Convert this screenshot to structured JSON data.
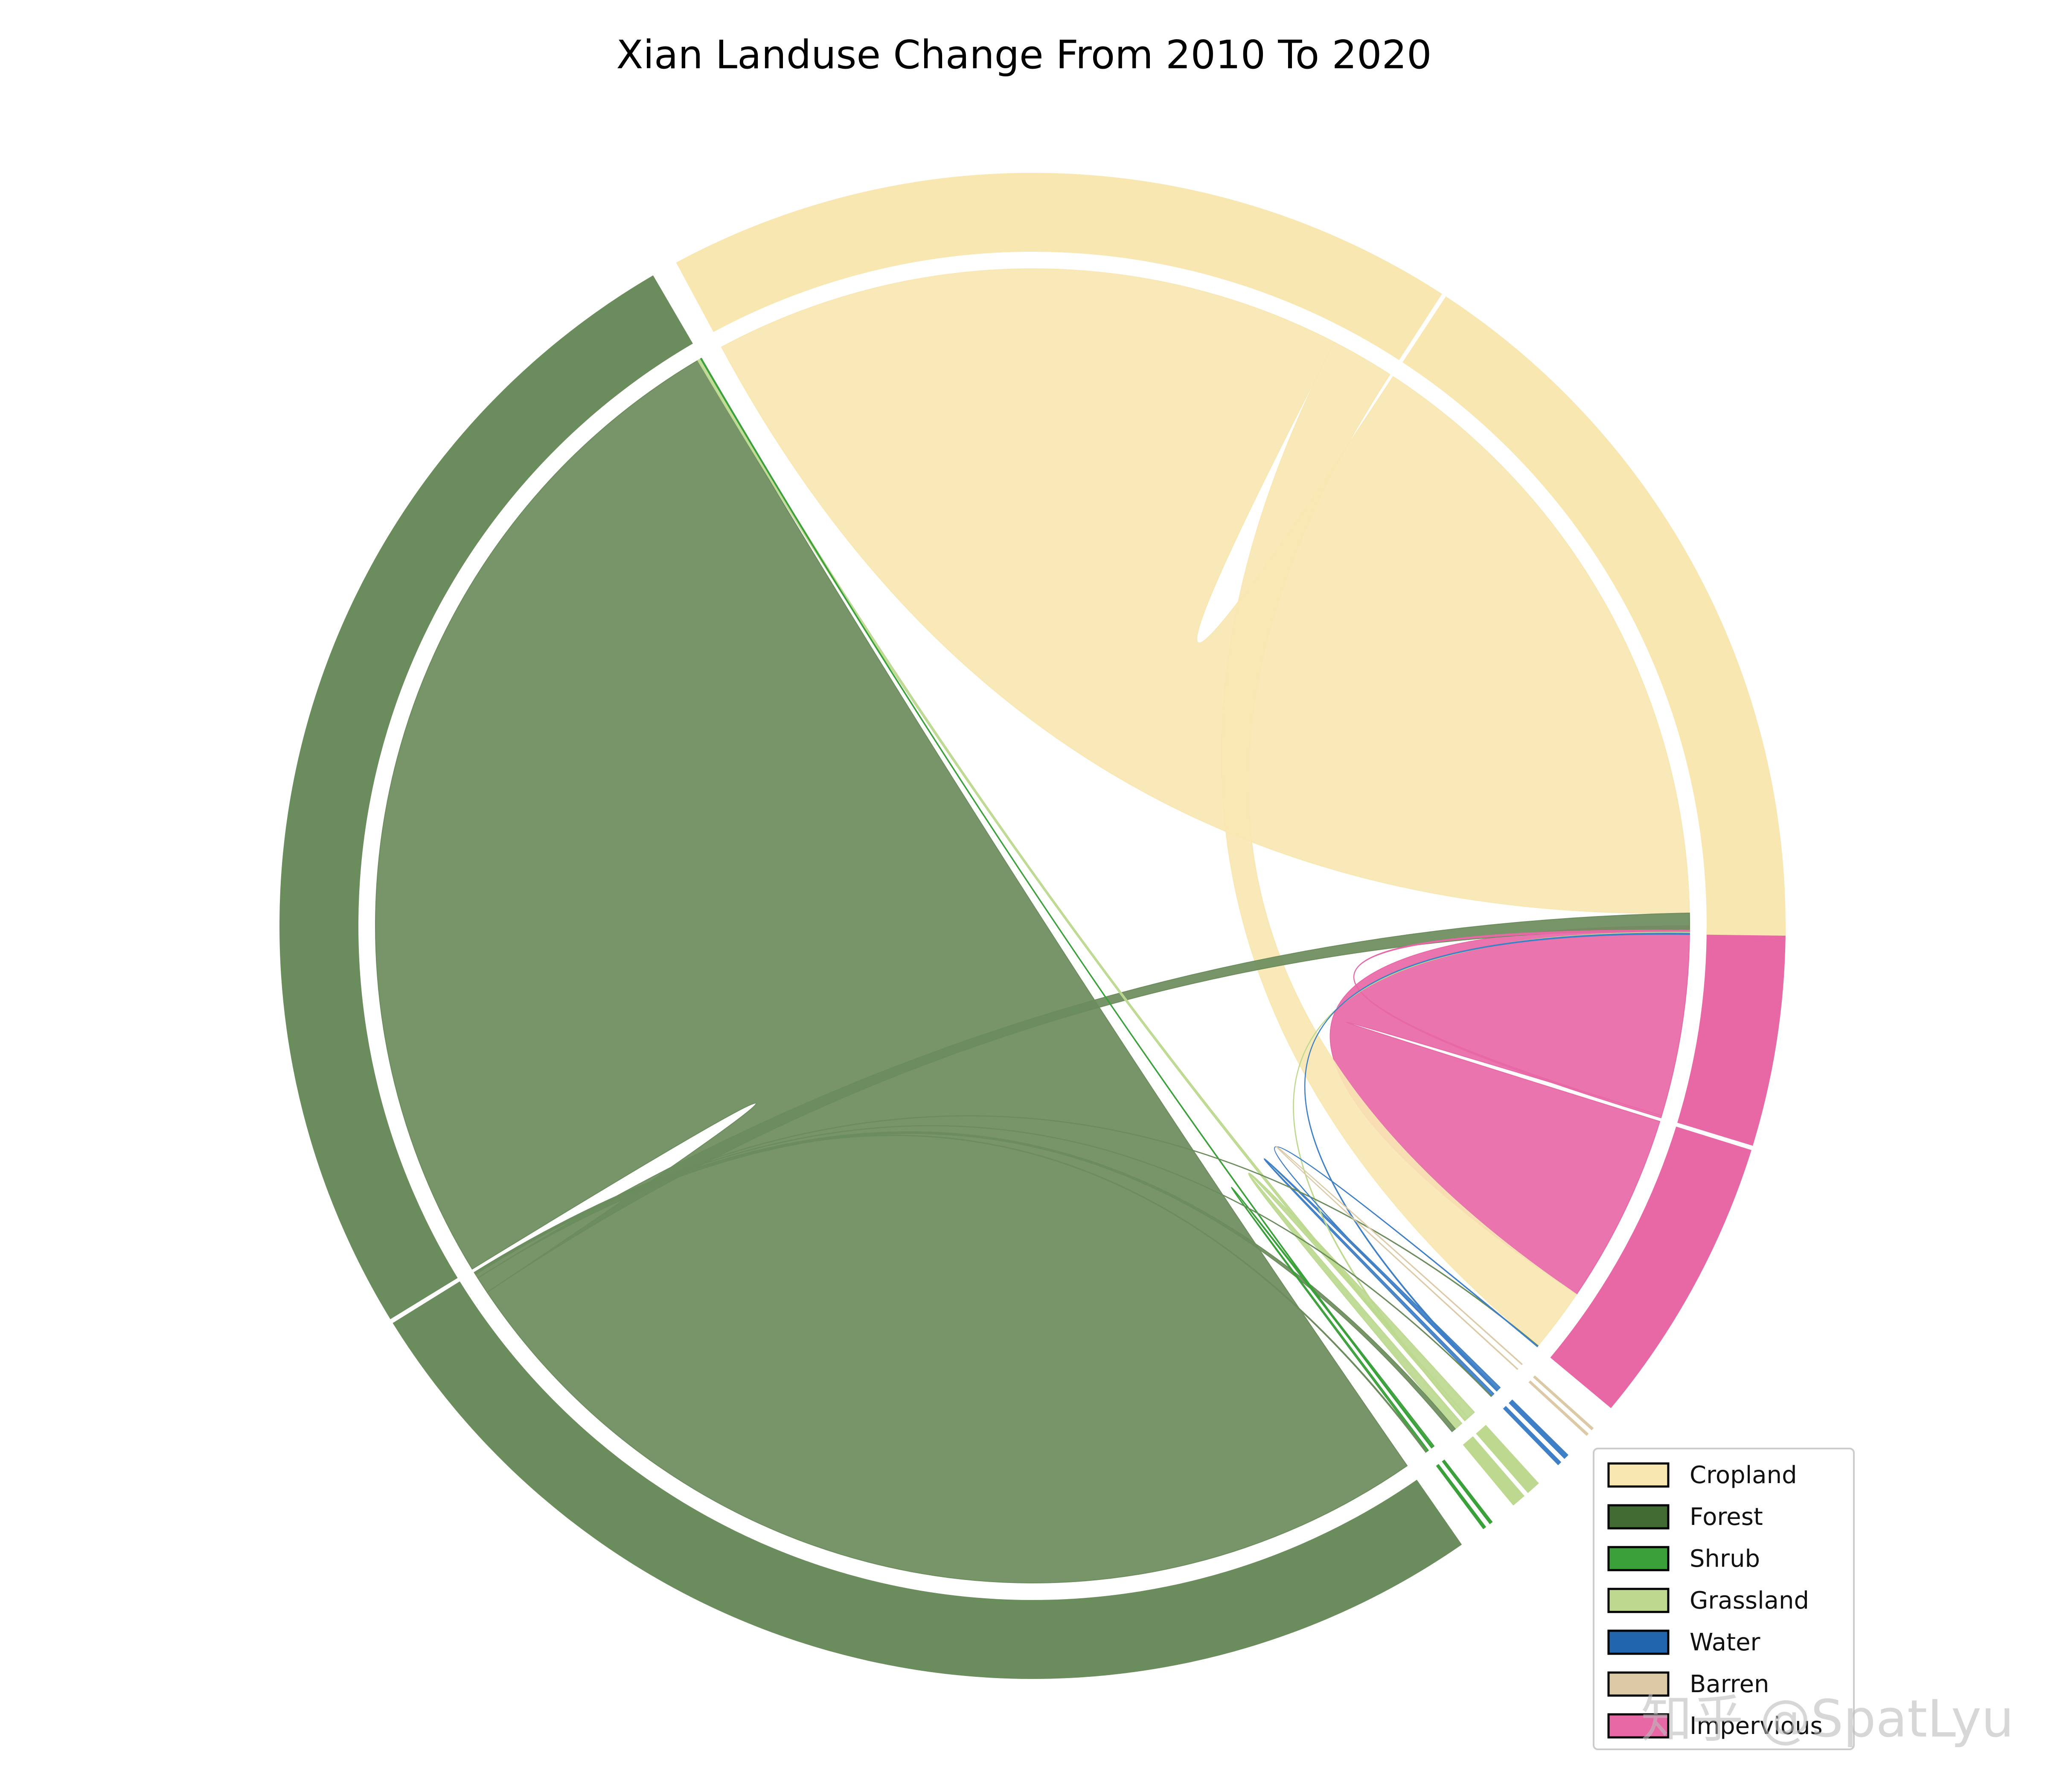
{
  "chart_data": {
    "type": "chord",
    "title": "Xian Landuse Change From 2010 To 2020",
    "legend_position": "bottom-right",
    "categories": [
      "Cropland",
      "Forest",
      "Shrub",
      "Grassland",
      "Water",
      "Barren",
      "Impervious"
    ],
    "colors": {
      "Cropland": "#f9e7b2",
      "Forest": "#6b8c5c",
      "Shrub": "#3aa03a",
      "Grassland": "#bcd98f",
      "Water": "#3f7fc5",
      "Barren": "#dcc9a6",
      "Impervious": "#e868a6"
    },
    "legend_colors": {
      "Cropland": "#f9e7b2",
      "Forest": "#416b33",
      "Shrub": "#3aa03a",
      "Grassland": "#bcd98f",
      "Water": "#2166ac",
      "Barren": "#dcc9a6",
      "Impervious": "#e868a6"
    },
    "flows_2010_to_2020": [
      {
        "from": "Cropland",
        "to": "Cropland",
        "value": 2980
      },
      {
        "from": "Cropland",
        "to": "Impervious",
        "value": 300
      },
      {
        "from": "Forest",
        "to": "Forest",
        "value": 4870
      },
      {
        "from": "Forest",
        "to": "Cropland",
        "value": 80
      },
      {
        "from": "Forest",
        "to": "Grassland",
        "value": 20
      },
      {
        "from": "Forest",
        "to": "Shrub",
        "value": 5
      },
      {
        "from": "Forest",
        "to": "Water",
        "value": 3
      },
      {
        "from": "Forest",
        "to": "Impervious",
        "value": 3
      },
      {
        "from": "Shrub",
        "to": "Shrub",
        "value": 10
      },
      {
        "from": "Shrub",
        "to": "Forest",
        "value": 5
      },
      {
        "from": "Grassland",
        "to": "Grassland",
        "value": 40
      },
      {
        "from": "Grassland",
        "to": "Forest",
        "value": 15
      },
      {
        "from": "Grassland",
        "to": "Cropland",
        "value": 5
      },
      {
        "from": "Water",
        "to": "Water",
        "value": 15
      },
      {
        "from": "Water",
        "to": "Cropland",
        "value": 5
      },
      {
        "from": "Water",
        "to": "Impervious",
        "value": 3
      },
      {
        "from": "Barren",
        "to": "Barren",
        "value": 3
      },
      {
        "from": "Impervious",
        "to": "Impervious",
        "value": 900
      },
      {
        "from": "Impervious",
        "to": "Cropland",
        "value": 10
      }
    ]
  },
  "watermark": "知乎 @SpatLyu"
}
